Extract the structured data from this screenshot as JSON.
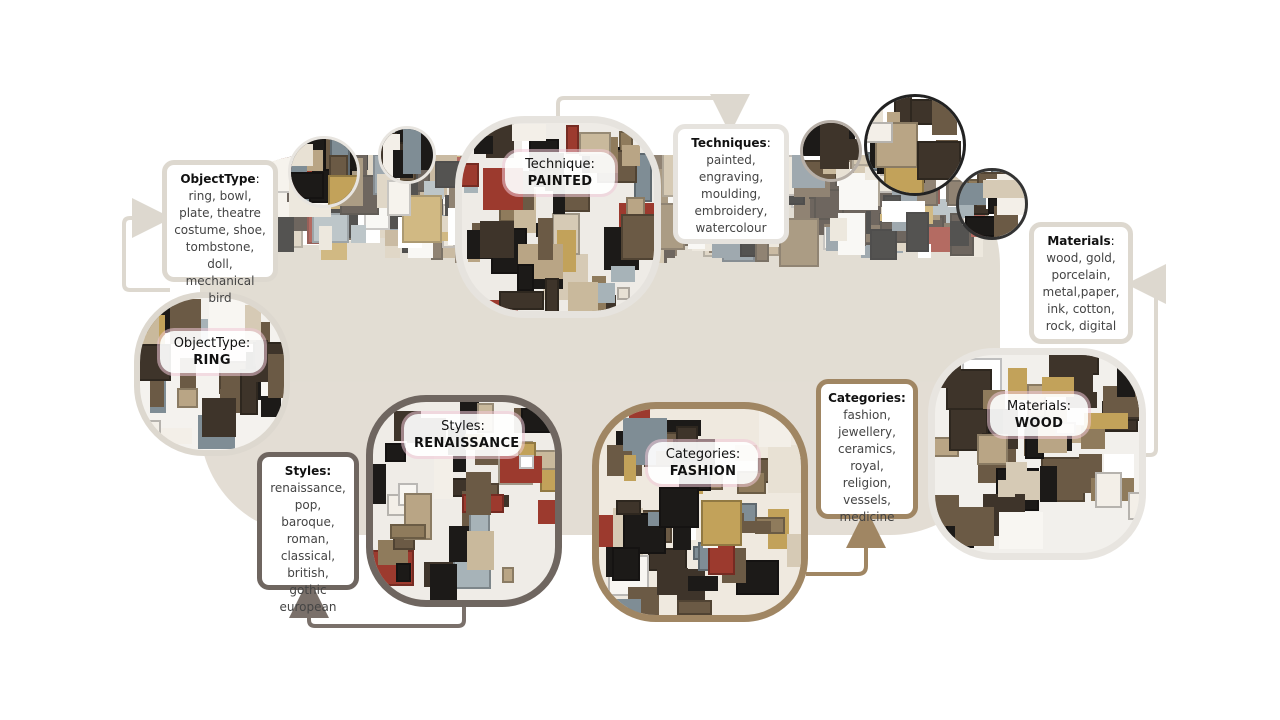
{
  "clusters": {
    "objecttype": {
      "label": "ObjectType:",
      "value": "RING"
    },
    "technique": {
      "label": "Technique:",
      "value": "PAINTED"
    },
    "styles": {
      "label": "Styles:",
      "value": "RENAISSANCE"
    },
    "categories": {
      "label": "Categories:",
      "value": "FASHION"
    },
    "materials": {
      "label": "Materials:",
      "value": "WOOD"
    }
  },
  "callouts": {
    "objecttype": {
      "title": "ObjectType",
      "colon": ":",
      "items": "ring, bowl, plate, theatre costume, shoe, tombstone, doll, mechanical bird"
    },
    "techniques": {
      "title": "Techniques",
      "colon": ":",
      "items": "painted, engraving, moulding, embroidery, watercolour"
    },
    "materials": {
      "title": "Materials",
      "colon": ":",
      "items": "wood, gold, porcelain, metal,paper, ink, cotton, rock, digital"
    },
    "styles": {
      "title": "Styles:",
      "colon": "",
      "items": "renaissance, pop, baroque, roman, classical, british, gothic european"
    },
    "categories": {
      "title": "Categories:",
      "colon": "",
      "items": "fashion, jewellery, ceramics, royal, religion, vessels, medicine"
    }
  },
  "colors": {
    "objecttype_border": "#ddd8cf",
    "technique_border": "#e6e3de",
    "styles_border": "#6f6660",
    "categories_border": "#a08663",
    "materials_border": "#e8e5e0",
    "arrow_light": "#ddd8cf",
    "arrow_styles": "#7a706a",
    "arrow_categories": "#a08663"
  },
  "icons": [
    "collage-thumbnail-circle",
    "arrow-connector"
  ]
}
